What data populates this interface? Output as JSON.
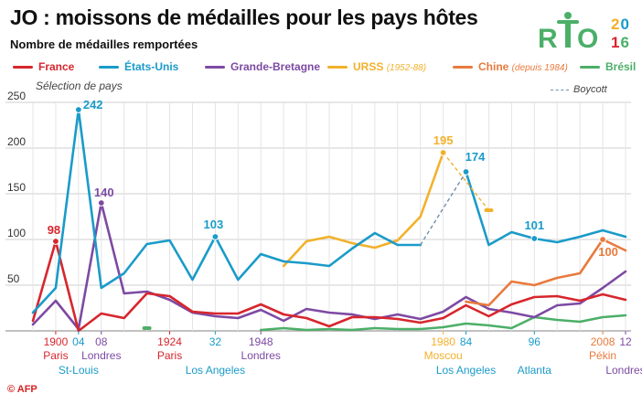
{
  "title": "JO : moissons de médailles pour les pays hôtes",
  "subtitle": "Nombre de médailles remportées",
  "selection_note": "Sélection de pays",
  "boycott_label": "Boycott",
  "logo": {
    "text_r": "R",
    "text_o": "O",
    "year": "2016"
  },
  "credit": "© AFP",
  "colors": {
    "france": "#d7262d",
    "usa": "#1a9bc9",
    "gb": "#7d4aa3",
    "urss": "#f2b12b",
    "chine": "#e87a3d",
    "bresil": "#4caf68",
    "grid": "#cfcfcf"
  },
  "legend": [
    {
      "name": "France",
      "note": "",
      "color": "#d7262d"
    },
    {
      "name": "États-Unis",
      "note": "",
      "color": "#1a9bc9"
    },
    {
      "name": "Grande-Bretagne",
      "note": "",
      "color": "#7d4aa3"
    },
    {
      "name": "URSS",
      "note": "(1952-88)",
      "color": "#f2b12b"
    },
    {
      "name": "Chine",
      "note": "(depuis 1984)",
      "color": "#e87a3d"
    },
    {
      "name": "Brésil",
      "note": "",
      "color": "#4caf68"
    }
  ],
  "chart_data": {
    "type": "line",
    "title": "JO : moissons de médailles pour les pays hôtes",
    "ylabel": "Nombre de médailles remportées",
    "ylim": [
      0,
      250
    ],
    "yticks": [
      0,
      50,
      100,
      150,
      200,
      250
    ],
    "ytick_labels": [
      "",
      "50",
      "100",
      "150",
      "200",
      "250"
    ],
    "x": [
      1896,
      1900,
      1904,
      1908,
      1912,
      1920,
      1924,
      1928,
      1932,
      1936,
      1948,
      1952,
      1956,
      1960,
      1964,
      1968,
      1972,
      1976,
      1980,
      1984,
      1988,
      1992,
      1996,
      2000,
      2004,
      2008,
      2012
    ],
    "series": [
      {
        "name": "France",
        "color": "#d7262d",
        "values": [
          11,
          98,
          0,
          19,
          14,
          41,
          38,
          21,
          19,
          19,
          29,
          18,
          14,
          5,
          15,
          15,
          13,
          9,
          14,
          28,
          16,
          29,
          37,
          38,
          33,
          40,
          34
        ]
      },
      {
        "name": "États-Unis",
        "color": "#1a9bc9",
        "values": [
          20,
          47,
          242,
          47,
          63,
          95,
          99,
          56,
          103,
          56,
          84,
          76,
          74,
          71,
          90,
          107,
          94,
          94,
          null,
          174,
          94,
          108,
          101,
          97,
          103,
          110,
          103
        ]
      },
      {
        "name": "Grande-Bretagne",
        "color": "#7d4aa3",
        "values": [
          7,
          33,
          2,
          140,
          41,
          43,
          34,
          20,
          16,
          14,
          23,
          11,
          24,
          20,
          18,
          13,
          18,
          13,
          21,
          37,
          24,
          20,
          15,
          28,
          30,
          47,
          65
        ]
      },
      {
        "name": "URSS",
        "color": "#f2b12b",
        "values": [
          null,
          null,
          null,
          null,
          null,
          null,
          null,
          null,
          null,
          null,
          null,
          71,
          98,
          103,
          96,
          91,
          99,
          125,
          195,
          null,
          132,
          null,
          null,
          null,
          null,
          null,
          null
        ]
      },
      {
        "name": "Chine",
        "color": "#e87a3d",
        "values": [
          null,
          null,
          null,
          null,
          null,
          null,
          null,
          null,
          null,
          null,
          null,
          null,
          null,
          null,
          null,
          null,
          null,
          null,
          null,
          32,
          28,
          54,
          50,
          58,
          63,
          100,
          88
        ]
      },
      {
        "name": "Brésil",
        "color": "#4caf68",
        "values": [
          null,
          null,
          null,
          null,
          null,
          3,
          null,
          null,
          null,
          null,
          1,
          3,
          1,
          2,
          1,
          3,
          2,
          2,
          4,
          8,
          6,
          3,
          15,
          12,
          10,
          15,
          17
        ]
      }
    ],
    "boycott_segments": [
      {
        "series": "États-Unis",
        "from": 1976,
        "to": 1984
      },
      {
        "series": "URSS",
        "from": 1980,
        "to": 1988
      }
    ],
    "annotations": [
      {
        "series": "France",
        "x": 1900,
        "label": "98"
      },
      {
        "series": "États-Unis",
        "x": 1904,
        "label": "242"
      },
      {
        "series": "Grande-Bretagne",
        "x": 1908,
        "label": "140"
      },
      {
        "series": "États-Unis",
        "x": 1932,
        "label": "103"
      },
      {
        "series": "URSS",
        "x": 1980,
        "label": "195"
      },
      {
        "series": "États-Unis",
        "x": 1984,
        "label": "174"
      },
      {
        "series": "États-Unis",
        "x": 1996,
        "label": "101"
      },
      {
        "series": "Chine",
        "x": 2008,
        "label": "100"
      }
    ],
    "host_labels": [
      {
        "x": 1900,
        "year": "1900",
        "city": "Paris",
        "color": "#d7262d"
      },
      {
        "x": 1904,
        "year": "04",
        "city": "St-Louis",
        "color": "#1a9bc9"
      },
      {
        "x": 1908,
        "year": "08",
        "city": "Londres",
        "color": "#7d4aa3"
      },
      {
        "x": 1924,
        "year": "1924",
        "city": "Paris",
        "color": "#d7262d"
      },
      {
        "x": 1932,
        "year": "32",
        "city": "Los Angeles",
        "color": "#1a9bc9"
      },
      {
        "x": 1948,
        "year": "1948",
        "city": "Londres",
        "color": "#7d4aa3"
      },
      {
        "x": 1980,
        "year": "1980",
        "city": "Moscou",
        "color": "#f2b12b"
      },
      {
        "x": 1984,
        "year": "84",
        "city": "Los Angeles",
        "color": "#1a9bc9"
      },
      {
        "x": 1996,
        "year": "96",
        "city": "Atlanta",
        "color": "#1a9bc9"
      },
      {
        "x": 2008,
        "year": "2008",
        "city": "Pékin",
        "color": "#e87a3d"
      },
      {
        "x": 2012,
        "year": "12",
        "city": "Londres",
        "color": "#7d4aa3"
      }
    ]
  }
}
